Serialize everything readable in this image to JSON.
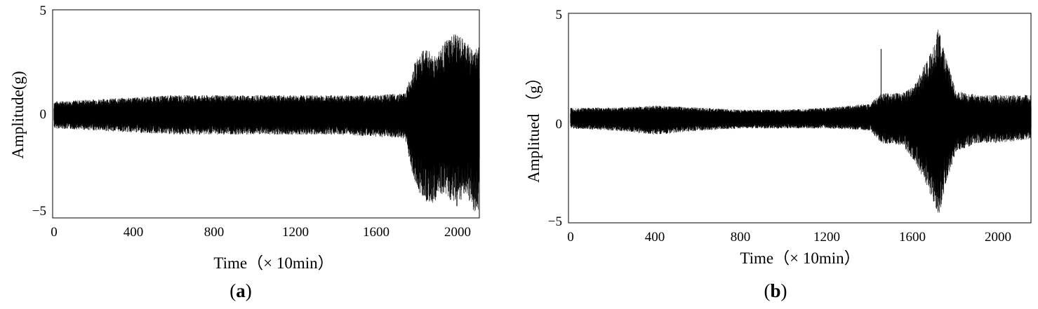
{
  "chart_data": [
    {
      "type": "line",
      "panel_label": "a",
      "xlabel": "Time（× 10min）",
      "ylabel": "Amplitude(g)",
      "xlim": [
        0,
        2120
      ],
      "ylim": [
        -5,
        5
      ],
      "xticks": [
        "0",
        "400",
        "800",
        "1200",
        "1600",
        "2000"
      ],
      "yticks": [
        "−5",
        "0",
        "5"
      ],
      "grid": false,
      "series": [
        {
          "x": [
            0,
            200,
            400,
            600,
            800,
            1000,
            1200,
            1400,
            1600,
            1750,
            1800,
            1850,
            1900,
            1950,
            2000,
            2050,
            2100,
            2120
          ],
          "upper": [
            0.6,
            0.7,
            0.8,
            0.9,
            0.9,
            0.9,
            0.9,
            0.9,
            0.9,
            1.0,
            2.5,
            3.2,
            2.8,
            3.5,
            3.9,
            3.5,
            3.0,
            3.8
          ],
          "lower": [
            -0.7,
            -0.8,
            -0.9,
            -1.0,
            -1.0,
            -1.0,
            -1.0,
            -1.0,
            -1.1,
            -1.2,
            -3.5,
            -4.2,
            -4.3,
            -3.8,
            -4.6,
            -3.8,
            -4.8,
            -4.8
          ]
        }
      ]
    },
    {
      "type": "line",
      "panel_label": "b",
      "xlabel": "Time（× 10min）",
      "ylabel": "Amplitued （g）",
      "xlim": [
        0,
        2150
      ],
      "ylim": [
        -5,
        5
      ],
      "xticks": [
        "0",
        "400",
        "800",
        "1200",
        "1600",
        "2000"
      ],
      "yticks": [
        "−5",
        "0",
        "5"
      ],
      "grid": false,
      "series": [
        {
          "x": [
            0,
            200,
            400,
            600,
            800,
            1000,
            1200,
            1400,
            1450,
            1550,
            1600,
            1650,
            1700,
            1720,
            1750,
            1800,
            1900,
            2000,
            2150
          ],
          "upper": [
            0.5,
            0.5,
            0.6,
            0.5,
            0.4,
            0.4,
            0.5,
            0.7,
            1.2,
            1.2,
            1.5,
            2.5,
            3.5,
            4.5,
            3.0,
            1.3,
            1.1,
            1.1,
            1.1
          ],
          "lower": [
            -0.5,
            -0.6,
            -0.8,
            -0.6,
            -0.5,
            -0.5,
            -0.5,
            -0.6,
            -1.2,
            -1.3,
            -2.0,
            -3.0,
            -4.2,
            -4.7,
            -3.3,
            -1.6,
            -1.2,
            -1.2,
            -1.0
          ]
        }
      ],
      "spike": {
        "x": 1450,
        "y": 3.3
      }
    }
  ]
}
